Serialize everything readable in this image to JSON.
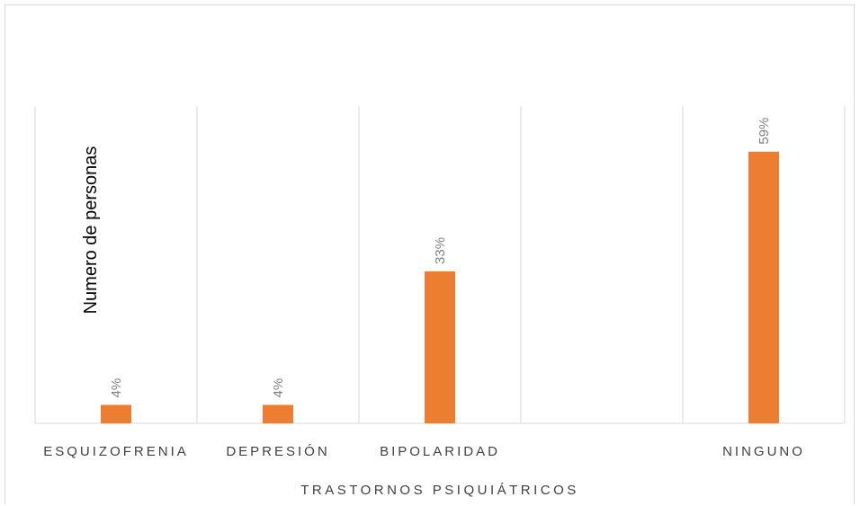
{
  "chart_data": {
    "type": "bar",
    "categories": [
      "ESQUIZOFRENIA",
      "DEPRESIÓN",
      "BIPOLARIDAD",
      "",
      "NINGUNO"
    ],
    "values": [
      4,
      4,
      33,
      null,
      59
    ],
    "data_labels": [
      "4%",
      "4%",
      "33%",
      "",
      "59%"
    ],
    "xlabel": "TRASTORNOS PSIQUIÁTRICOS",
    "ylabel": "Numero de personas",
    "ylim": [
      0,
      65
    ],
    "grid": "vertical",
    "bar_color": "#ed7d31"
  }
}
